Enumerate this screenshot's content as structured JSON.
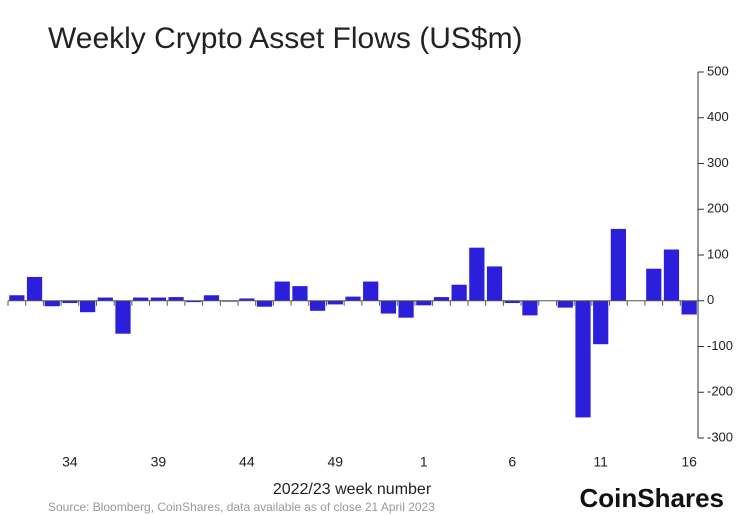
{
  "chart_data": {
    "type": "bar",
    "title": "Weekly Crypto Asset Flows (US$m)",
    "x_label": "2022/23 week number",
    "source": "Source: Bloomberg, CoinShares, data available as of close 21 April 2023",
    "logo": "CoinShares",
    "categories": [
      null,
      null,
      null,
      "34",
      null,
      null,
      null,
      null,
      "39",
      null,
      null,
      null,
      null,
      "44",
      null,
      null,
      null,
      null,
      "49",
      null,
      null,
      null,
      null,
      "1",
      null,
      null,
      null,
      null,
      "6",
      null,
      null,
      null,
      null,
      "11",
      null,
      null,
      null,
      null,
      "16"
    ],
    "values": [
      12,
      52,
      -12,
      -5,
      -25,
      7,
      -72,
      7,
      7,
      8,
      -3,
      12,
      -2,
      5,
      -13,
      42,
      32,
      -22,
      -8,
      9,
      42,
      -28,
      -37,
      -10,
      8,
      35,
      116,
      75,
      -5,
      -32,
      0,
      -15,
      -255,
      -95,
      157,
      0,
      70,
      112,
      -30
    ],
    "color": "#2b1fdc",
    "ylim": [
      -300,
      500
    ],
    "yticks": [
      -300,
      -200,
      -100,
      0,
      100,
      200,
      300,
      400,
      500
    ],
    "y_axis_side": "right"
  }
}
